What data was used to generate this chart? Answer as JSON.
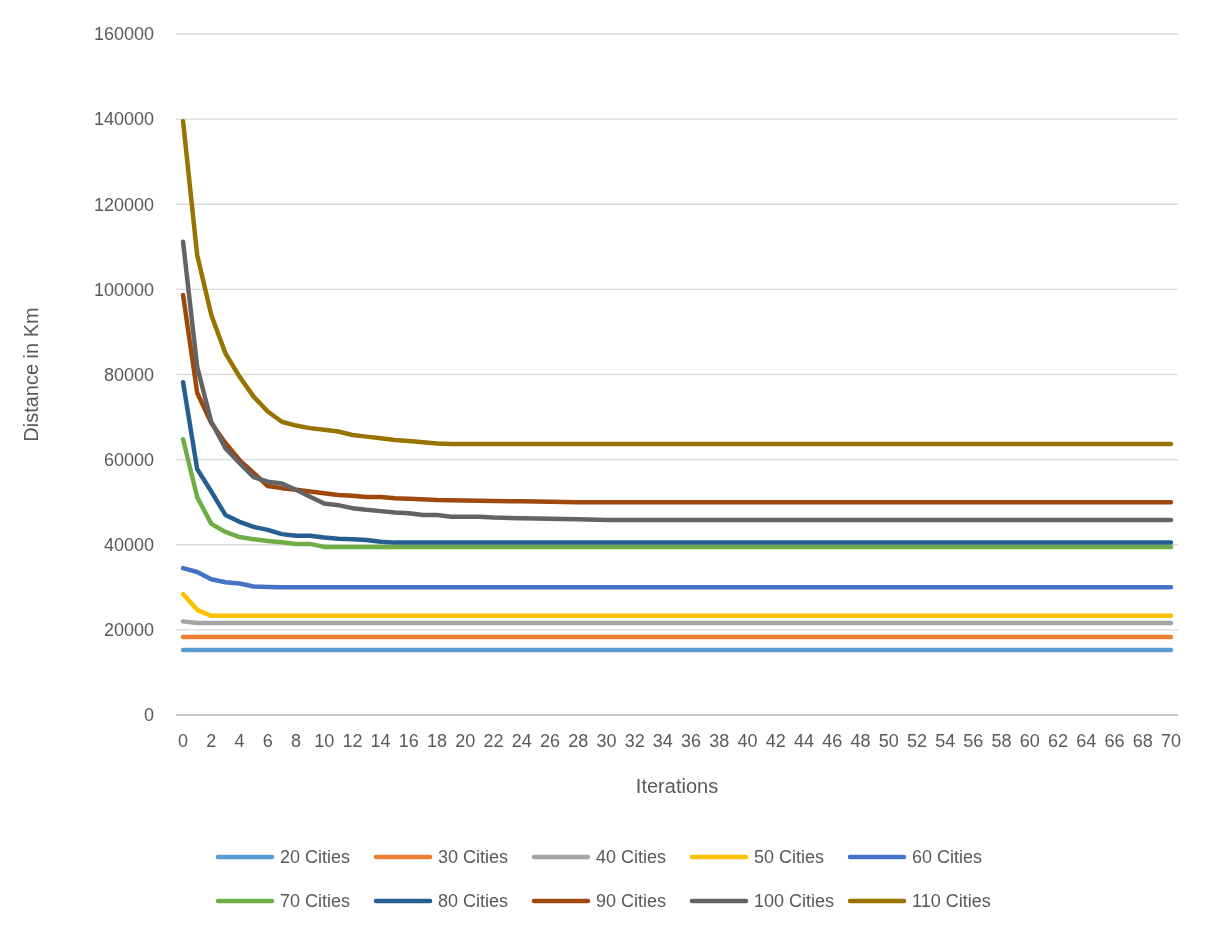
{
  "chart_data": {
    "type": "line",
    "xlabel": "Iterations",
    "ylabel": "Distance in Km",
    "xlim": [
      -0.5,
      70.5
    ],
    "xticks": [
      0,
      2,
      4,
      6,
      8,
      10,
      12,
      14,
      16,
      18,
      20,
      22,
      24,
      26,
      28,
      30,
      32,
      34,
      36,
      38,
      40,
      42,
      44,
      46,
      48,
      50,
      52,
      54,
      56,
      58,
      60,
      62,
      64,
      66,
      68,
      70
    ],
    "ylim": [
      0,
      160000
    ],
    "yticks": [
      0,
      20000,
      40000,
      60000,
      80000,
      100000,
      120000,
      140000,
      160000
    ],
    "grid": "y",
    "legend": "bottom",
    "marker": "none",
    "line_style": "solid",
    "series": [
      {
        "name": "20 Cities",
        "color": "#5b9bd5",
        "x": [
          0,
          70
        ],
        "values": [
          15300,
          15300
        ]
      },
      {
        "name": "30 Cities",
        "color": "#ed7d31",
        "x": [
          0,
          70
        ],
        "values": [
          18300,
          18300
        ]
      },
      {
        "name": "40 Cities",
        "color": "#a5a5a5",
        "x": [
          0,
          1,
          70
        ],
        "values": [
          22000,
          21600,
          21600
        ]
      },
      {
        "name": "50 Cities",
        "color": "#ffc000",
        "x": [
          0,
          1,
          2,
          70
        ],
        "values": [
          28400,
          24700,
          23300,
          23300
        ]
      },
      {
        "name": "60 Cities",
        "color": "#4472c4",
        "x": [
          0,
          1,
          2,
          3,
          4,
          5,
          6,
          7,
          70
        ],
        "values": [
          34500,
          33600,
          31900,
          31200,
          30900,
          30200,
          30100,
          30000,
          30000
        ]
      },
      {
        "name": "70 Cities",
        "color": "#70ad47",
        "x": [
          0,
          1,
          2,
          3,
          4,
          5,
          6,
          7,
          8,
          9,
          10,
          70
        ],
        "values": [
          64800,
          51200,
          44900,
          43000,
          41800,
          41300,
          40900,
          40600,
          40200,
          40200,
          39500,
          39500
        ]
      },
      {
        "name": "80 Cities",
        "color": "#255e91",
        "x": [
          0,
          1,
          2,
          3,
          4,
          5,
          6,
          7,
          8,
          9,
          10,
          11,
          12,
          13,
          14,
          15,
          70
        ],
        "values": [
          78200,
          57800,
          52500,
          47000,
          45400,
          44200,
          43500,
          42500,
          42100,
          42100,
          41700,
          41400,
          41300,
          41100,
          40700,
          40500,
          40500
        ]
      },
      {
        "name": "90 Cities",
        "color": "#9e480e",
        "x": [
          0,
          1,
          2,
          3,
          4,
          5,
          6,
          7,
          8,
          9,
          10,
          11,
          12,
          13,
          14,
          15,
          16,
          18,
          20,
          22,
          24,
          26,
          28,
          70
        ],
        "values": [
          98700,
          75700,
          68600,
          63900,
          59900,
          56900,
          53800,
          53300,
          52900,
          52500,
          52100,
          51700,
          51500,
          51200,
          51200,
          50900,
          50800,
          50500,
          50400,
          50300,
          50200,
          50100,
          50000,
          50000
        ]
      },
      {
        "name": "100 Cities",
        "color": "#636363",
        "x": [
          0,
          1,
          2,
          3,
          4,
          5,
          6,
          7,
          8,
          9,
          10,
          11,
          12,
          13,
          14,
          15,
          16,
          17,
          18,
          19,
          20,
          21,
          22,
          24,
          26,
          28,
          30,
          70
        ],
        "values": [
          111200,
          81800,
          68900,
          62700,
          59200,
          55900,
          54800,
          54400,
          52900,
          51300,
          49700,
          49300,
          48600,
          48200,
          47900,
          47600,
          47400,
          47000,
          47000,
          46600,
          46600,
          46600,
          46400,
          46200,
          46100,
          46000,
          45800,
          45800
        ]
      },
      {
        "name": "110 Cities",
        "color": "#997300",
        "x": [
          0,
          1,
          2,
          3,
          4,
          5,
          6,
          7,
          8,
          9,
          10,
          11,
          12,
          13,
          14,
          15,
          16,
          17,
          18,
          19,
          70
        ],
        "values": [
          139500,
          108100,
          94000,
          85000,
          79500,
          74800,
          71300,
          68900,
          68000,
          67400,
          67000,
          66600,
          65800,
          65400,
          65000,
          64600,
          64400,
          64100,
          63800,
          63700,
          63700
        ]
      }
    ]
  }
}
